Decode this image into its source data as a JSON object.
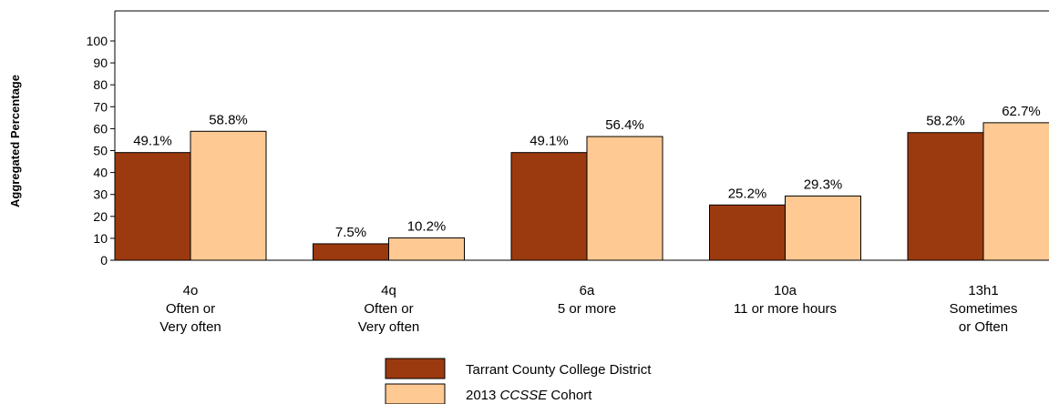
{
  "chart_data": {
    "type": "bar",
    "title": "",
    "xlabel": "",
    "ylabel": "Aggregated Percentage",
    "ylim": [
      0,
      100
    ],
    "yticks": [
      0,
      10,
      20,
      30,
      40,
      50,
      60,
      70,
      80,
      90,
      100
    ],
    "grid": false,
    "legend_position": "bottom-center",
    "categories": [
      [
        "4o",
        "Often or",
        "Very often"
      ],
      [
        "4q",
        "Often or",
        "Very often"
      ],
      [
        "6a",
        "5 or more"
      ],
      [
        "10a",
        "11 or more hours"
      ],
      [
        "13h1",
        "Sometimes",
        "or Often"
      ]
    ],
    "series": [
      {
        "name": "Tarrant County College District",
        "color": "#9c3a0f",
        "values": [
          49.1,
          7.5,
          49.1,
          25.2,
          58.2
        ],
        "labels": [
          "49.1%",
          "7.5%",
          "49.1%",
          "25.2%",
          "58.2%"
        ]
      },
      {
        "name_parts": [
          "2013 ",
          "CCSSE",
          " Cohort"
        ],
        "color": "#ffc993",
        "values": [
          58.8,
          10.2,
          56.4,
          29.3,
          62.7
        ],
        "labels": [
          "58.8%",
          "10.2%",
          "56.4%",
          "29.3%",
          "62.7%"
        ]
      }
    ]
  }
}
